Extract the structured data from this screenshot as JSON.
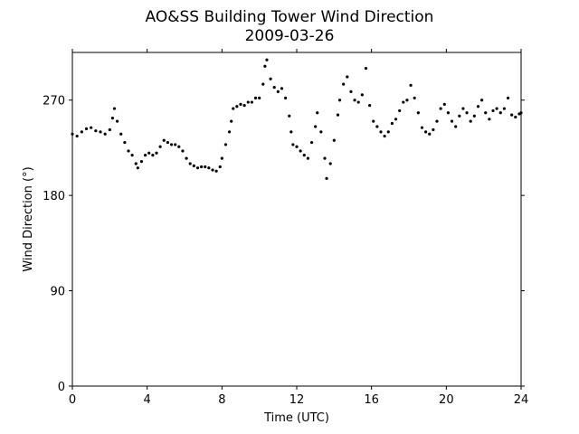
{
  "chart_data": {
    "type": "scatter",
    "title": "AO&SS Building Tower Wind Direction",
    "subtitle": "2009-03-26",
    "xlabel": "Time (UTC)",
    "ylabel": "Wind Direction (°)",
    "xlim": [
      0,
      24
    ],
    "ylim": [
      0,
      315
    ],
    "xticks": [
      0,
      4,
      8,
      12,
      16,
      20,
      24
    ],
    "yticks": [
      0,
      90,
      180,
      270
    ],
    "grid": false,
    "marker_color": "#000000",
    "series": [
      {
        "points": [
          [
            0.0,
            238
          ],
          [
            0.25,
            236
          ],
          [
            0.5,
            240
          ],
          [
            0.75,
            243
          ],
          [
            1.0,
            244
          ],
          [
            1.25,
            241
          ],
          [
            1.5,
            240
          ],
          [
            1.75,
            238
          ],
          [
            2.0,
            242
          ],
          [
            2.15,
            253
          ],
          [
            2.25,
            262
          ],
          [
            2.4,
            250
          ],
          [
            2.6,
            238
          ],
          [
            2.8,
            230
          ],
          [
            3.0,
            222
          ],
          [
            3.2,
            218
          ],
          [
            3.4,
            210
          ],
          [
            3.5,
            206
          ],
          [
            3.7,
            212
          ],
          [
            3.9,
            218
          ],
          [
            4.1,
            220
          ],
          [
            4.3,
            218
          ],
          [
            4.5,
            220
          ],
          [
            4.7,
            226
          ],
          [
            4.9,
            232
          ],
          [
            5.1,
            230
          ],
          [
            5.3,
            228
          ],
          [
            5.5,
            228
          ],
          [
            5.7,
            226
          ],
          [
            5.9,
            222
          ],
          [
            6.1,
            215
          ],
          [
            6.3,
            210
          ],
          [
            6.5,
            208
          ],
          [
            6.7,
            206
          ],
          [
            6.9,
            207
          ],
          [
            7.1,
            207
          ],
          [
            7.3,
            206
          ],
          [
            7.5,
            204
          ],
          [
            7.7,
            203
          ],
          [
            7.9,
            207
          ],
          [
            8.0,
            215
          ],
          [
            8.2,
            228
          ],
          [
            8.4,
            240
          ],
          [
            8.5,
            250
          ],
          [
            8.6,
            262
          ],
          [
            8.8,
            264
          ],
          [
            9.0,
            266
          ],
          [
            9.2,
            265
          ],
          [
            9.4,
            268
          ],
          [
            9.6,
            268
          ],
          [
            9.8,
            272
          ],
          [
            10.0,
            272
          ],
          [
            10.2,
            285
          ],
          [
            10.3,
            302
          ],
          [
            10.4,
            308
          ],
          [
            10.6,
            290
          ],
          [
            10.8,
            282
          ],
          [
            11.0,
            278
          ],
          [
            11.2,
            281
          ],
          [
            11.4,
            272
          ],
          [
            11.6,
            255
          ],
          [
            11.7,
            240
          ],
          [
            11.8,
            228
          ],
          [
            12.0,
            226
          ],
          [
            12.2,
            222
          ],
          [
            12.4,
            218
          ],
          [
            12.6,
            215
          ],
          [
            12.8,
            230
          ],
          [
            13.0,
            245
          ],
          [
            13.1,
            258
          ],
          [
            13.3,
            240
          ],
          [
            13.5,
            215
          ],
          [
            13.6,
            196
          ],
          [
            13.8,
            210
          ],
          [
            14.0,
            232
          ],
          [
            14.2,
            256
          ],
          [
            14.3,
            270
          ],
          [
            14.5,
            285
          ],
          [
            14.7,
            292
          ],
          [
            14.9,
            278
          ],
          [
            15.1,
            270
          ],
          [
            15.3,
            268
          ],
          [
            15.5,
            275
          ],
          [
            15.7,
            300
          ],
          [
            15.9,
            265
          ],
          [
            16.1,
            250
          ],
          [
            16.3,
            245
          ],
          [
            16.5,
            240
          ],
          [
            16.7,
            236
          ],
          [
            16.9,
            240
          ],
          [
            17.1,
            248
          ],
          [
            17.3,
            252
          ],
          [
            17.5,
            260
          ],
          [
            17.7,
            268
          ],
          [
            17.9,
            270
          ],
          [
            18.1,
            284
          ],
          [
            18.3,
            272
          ],
          [
            18.5,
            258
          ],
          [
            18.7,
            244
          ],
          [
            18.9,
            240
          ],
          [
            19.1,
            238
          ],
          [
            19.3,
            242
          ],
          [
            19.5,
            250
          ],
          [
            19.7,
            262
          ],
          [
            19.9,
            266
          ],
          [
            20.1,
            258
          ],
          [
            20.3,
            250
          ],
          [
            20.5,
            245
          ],
          [
            20.7,
            255
          ],
          [
            20.9,
            262
          ],
          [
            21.1,
            258
          ],
          [
            21.3,
            250
          ],
          [
            21.5,
            255
          ],
          [
            21.7,
            264
          ],
          [
            21.9,
            270
          ],
          [
            22.1,
            258
          ],
          [
            22.3,
            252
          ],
          [
            22.5,
            260
          ],
          [
            22.7,
            262
          ],
          [
            22.9,
            258
          ],
          [
            23.1,
            262
          ],
          [
            23.3,
            272
          ],
          [
            23.5,
            256
          ],
          [
            23.7,
            254
          ],
          [
            23.9,
            257
          ],
          [
            24.0,
            258
          ]
        ]
      }
    ]
  }
}
